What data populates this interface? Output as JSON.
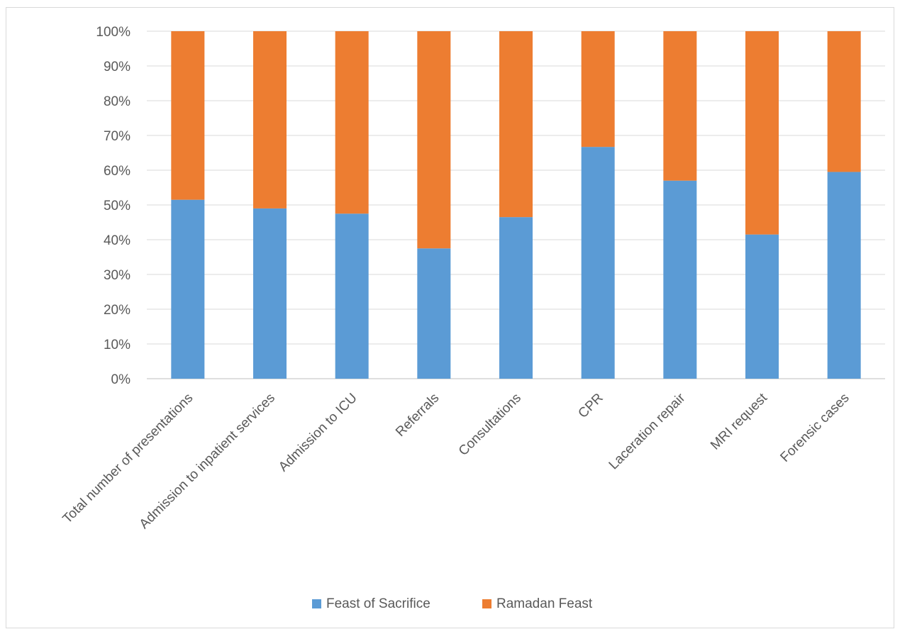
{
  "chart_data": {
    "type": "bar",
    "stacked": true,
    "percent": true,
    "title": "",
    "xlabel": "",
    "ylabel": "",
    "ylim": [
      0,
      100
    ],
    "y_ticks": [
      "0%",
      "10%",
      "20%",
      "30%",
      "40%",
      "50%",
      "60%",
      "70%",
      "80%",
      "90%",
      "100%"
    ],
    "grid": true,
    "legend_position": "bottom",
    "categories": [
      "Total number of presentations",
      "Admission to inpatient services",
      "Admission to ICU",
      "Referrals",
      "Consultations",
      "CPR",
      "Laceration repair",
      "MRI request",
      "Forensic cases"
    ],
    "series": [
      {
        "name": "Feast of Sacrifice",
        "color": "#5b9bd5",
        "values": [
          51.5,
          49,
          47.5,
          37.5,
          46.5,
          66.7,
          57,
          41.5,
          59.5
        ]
      },
      {
        "name": "Ramadan Feast",
        "color": "#ed7d31",
        "values": [
          48.5,
          51,
          52.5,
          62.5,
          53.5,
          33.3,
          43,
          58.5,
          40.5
        ]
      }
    ]
  }
}
